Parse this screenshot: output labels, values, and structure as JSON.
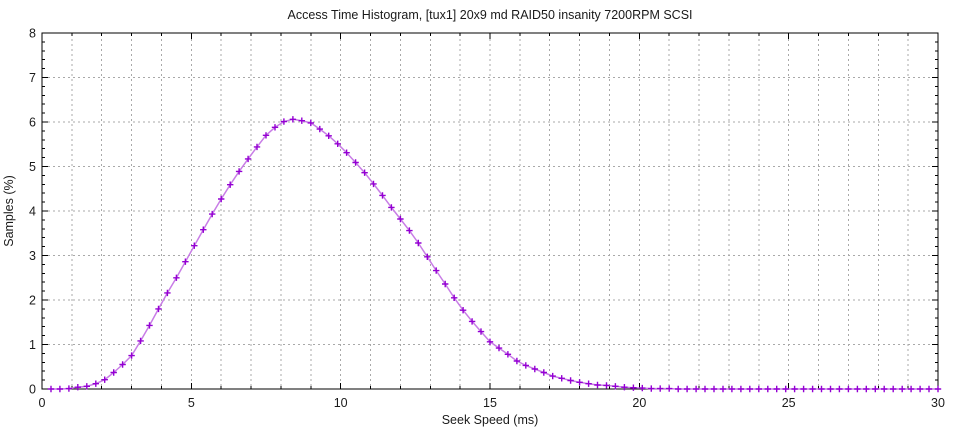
{
  "chart_data": {
    "type": "line",
    "title": "Access Time Histogram, [tux1] 20x9 md RAID50 insanity 7200RPM SCSI",
    "xlabel": "Seek Speed (ms)",
    "ylabel": "Samples (%)",
    "xlim": [
      0,
      30
    ],
    "ylim": [
      0,
      8
    ],
    "grid": true,
    "legend": "none",
    "x_major_ticks": [
      0,
      5,
      10,
      15,
      20,
      25,
      30
    ],
    "x_tick_labels": [
      "0",
      "5",
      "10",
      "15",
      "20",
      "25",
      "30"
    ],
    "x_minor_step": 1,
    "y_major_ticks": [
      0,
      1,
      2,
      3,
      4,
      5,
      6,
      7,
      8
    ],
    "y_tick_labels": [
      "0",
      "1",
      "2",
      "3",
      "4",
      "5",
      "6",
      "7",
      "8"
    ],
    "y_minor_step": 0.2,
    "colors": {
      "line": "#c87de6",
      "marker": "#9400d3",
      "grid": "#a9a9a9",
      "frame": "#000000",
      "text": "#1a1a1a",
      "background": "#ffffff"
    },
    "series": [
      {
        "name": "samples",
        "marker": "plus",
        "peak": {
          "x": 8.5,
          "y": 6.07
        },
        "x": [
          0.3,
          0.6,
          0.9,
          1.2,
          1.5,
          1.8,
          2.1,
          2.4,
          2.7,
          3,
          3.3,
          3.6,
          3.9,
          4.2,
          4.5,
          4.8,
          5.1,
          5.4,
          5.7,
          6,
          6.3,
          6.6,
          6.9,
          7.2,
          7.5,
          7.8,
          8.1,
          8.4,
          8.7,
          9,
          9.3,
          9.6,
          9.9,
          10.2,
          10.5,
          10.8,
          11.1,
          11.4,
          11.7,
          12,
          12.3,
          12.6,
          12.9,
          13.2,
          13.5,
          13.8,
          14.1,
          14.4,
          14.7,
          15,
          15.3,
          15.6,
          15.9,
          16.2,
          16.5,
          16.8,
          17.1,
          17.4,
          17.7,
          18,
          18.3,
          18.6,
          18.9,
          19.2,
          19.5,
          19.8,
          20.1,
          20.4,
          20.7,
          21,
          21.3,
          21.6,
          21.9,
          22.2,
          22.5,
          22.8,
          23.1,
          23.4,
          23.7,
          24,
          24.3,
          24.6,
          24.9,
          25.2,
          25.5,
          25.8,
          26.1,
          26.4,
          26.7,
          27,
          27.3,
          27.6,
          27.9,
          28.2,
          28.5,
          28.8,
          29.1,
          29.4,
          29.7,
          30
        ],
        "y": [
          0,
          0,
          0.01,
          0.04,
          0.06,
          0.12,
          0.21,
          0.37,
          0.55,
          0.75,
          1.08,
          1.43,
          1.8,
          2.16,
          2.5,
          2.86,
          3.22,
          3.58,
          3.93,
          4.27,
          4.59,
          4.89,
          5.17,
          5.44,
          5.7,
          5.88,
          6.01,
          6.06,
          6.03,
          5.98,
          5.84,
          5.69,
          5.51,
          5.31,
          5.09,
          4.86,
          4.61,
          4.35,
          4.08,
          3.82,
          3.56,
          3.28,
          2.97,
          2.66,
          2.36,
          2.05,
          1.77,
          1.52,
          1.29,
          1.06,
          0.92,
          0.78,
          0.63,
          0.53,
          0.45,
          0.37,
          0.29,
          0.24,
          0.19,
          0.15,
          0.12,
          0.09,
          0.08,
          0.06,
          0.04,
          0.03,
          0.02,
          0.01,
          0.01,
          0.01,
          0,
          0,
          0,
          0,
          0,
          0,
          0,
          0,
          0,
          0,
          0,
          0,
          0,
          0,
          0,
          0,
          0,
          0,
          0,
          0,
          0,
          0,
          0,
          0,
          0,
          0,
          0,
          0,
          0,
          0
        ]
      }
    ]
  }
}
